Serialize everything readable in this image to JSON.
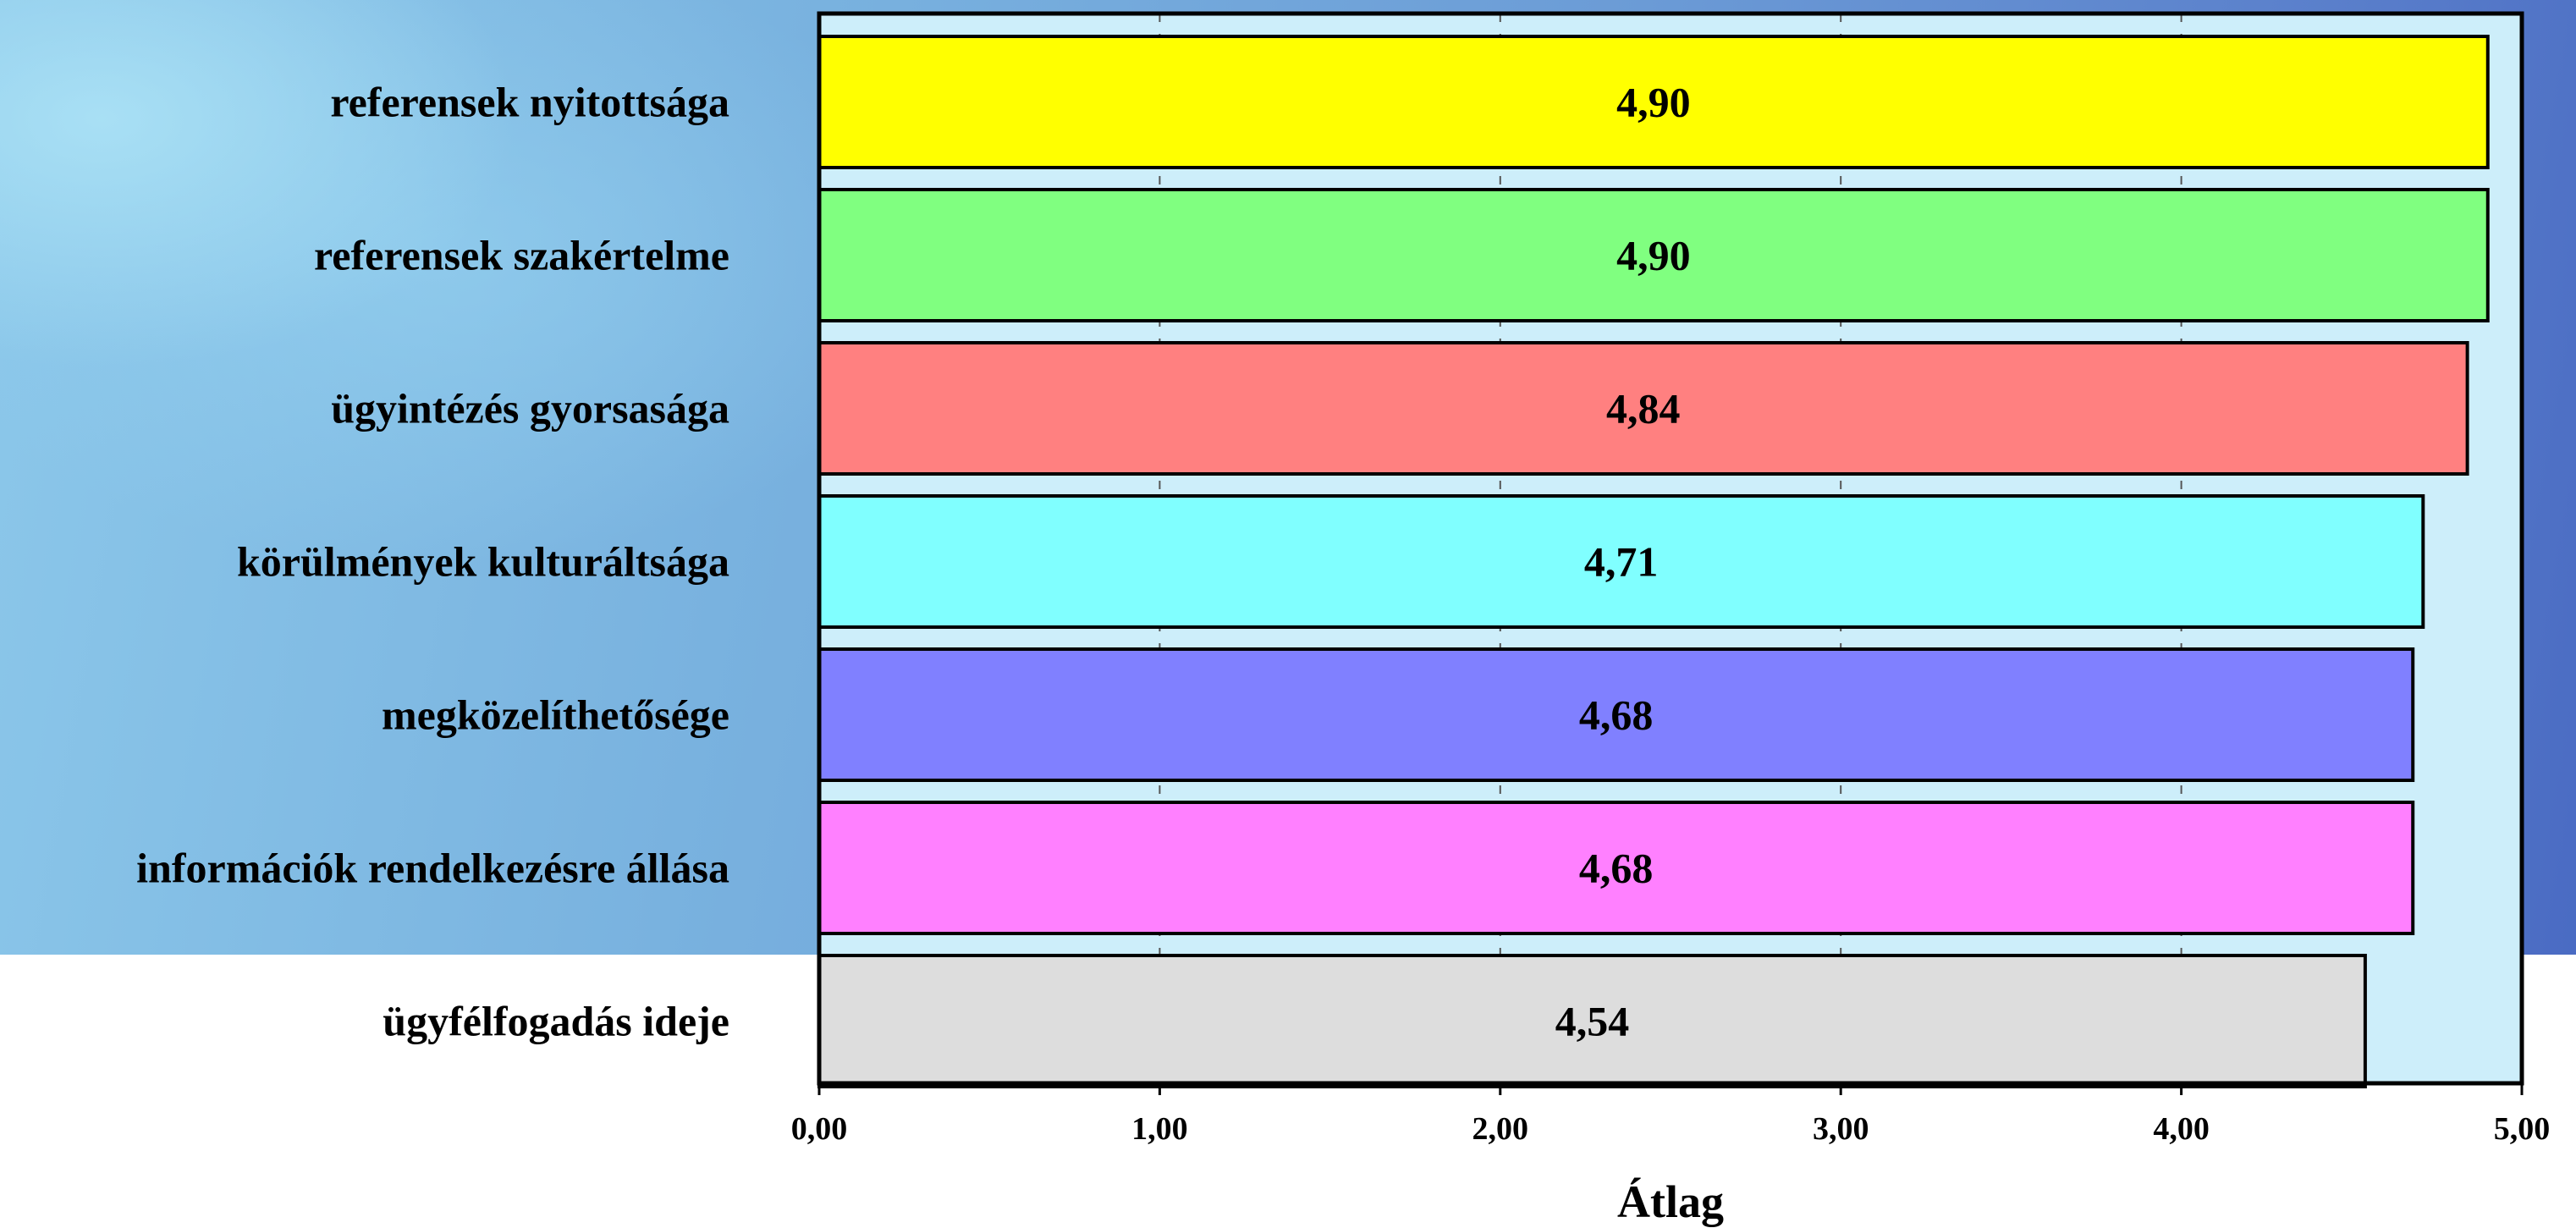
{
  "chart_data": {
    "type": "bar",
    "orientation": "horizontal",
    "categories": [
      "referensek nyitottsága",
      "referensek szakértelme",
      "ügyintézés gyorsasága",
      "körülmények kulturáltsága",
      "megközelíthetősége",
      "információk rendelkezésre állása",
      "ügyfélfogadás ideje"
    ],
    "values": [
      4.9,
      4.9,
      4.84,
      4.71,
      4.68,
      4.68,
      4.54
    ],
    "value_labels": [
      "4,90",
      "4,90",
      "4,84",
      "4,71",
      "4,68",
      "4,68",
      "4,54"
    ],
    "bar_colors": [
      "#ffff00",
      "#80ff80",
      "#ff8080",
      "#80ffff",
      "#8080ff",
      "#ff80ff",
      "#dddddd"
    ],
    "plot_background": "#cdeefa",
    "xlim": [
      0,
      5
    ],
    "xticks": [
      0,
      1,
      2,
      3,
      4,
      5
    ],
    "xtick_labels": [
      "0,00",
      "1,00",
      "2,00",
      "3,00",
      "4,00",
      "5,00"
    ],
    "xlabel": "Átlag",
    "grid": "vertical dashed",
    "legend": "none"
  }
}
